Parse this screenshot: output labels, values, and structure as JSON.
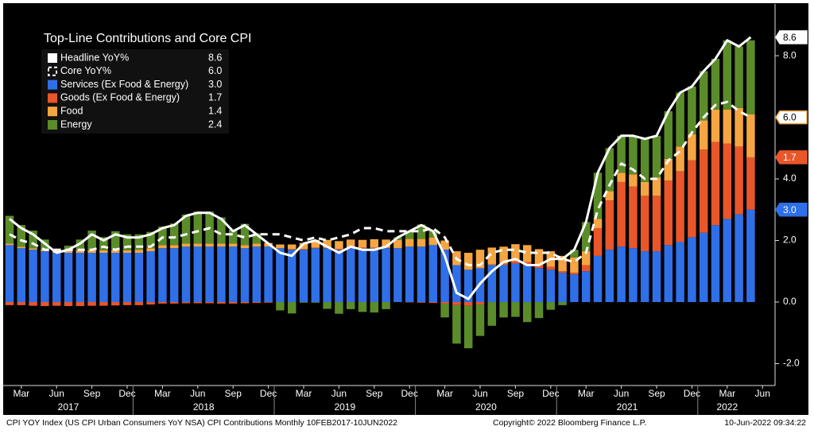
{
  "chart_data": {
    "type": "stacked_bar",
    "title": "Top-Line Contributions and Core CPI",
    "categories": [
      null,
      "Mar",
      null,
      null,
      "Jun",
      null,
      null,
      "Sep",
      null,
      null,
      "Dec",
      null,
      null,
      "Mar",
      null,
      null,
      "Jun",
      null,
      null,
      "Sep",
      null,
      null,
      "Dec",
      null,
      null,
      "Mar",
      null,
      null,
      "Jun",
      null,
      null,
      "Sep",
      null,
      null,
      "Dec",
      null,
      null,
      "Mar",
      null,
      null,
      "Jun",
      null,
      null,
      "Sep",
      null,
      null,
      "Dec",
      null,
      null,
      "Mar",
      null,
      null,
      "Jun",
      null,
      null,
      "Sep",
      null,
      null,
      "Dec",
      null,
      null,
      "Mar",
      null,
      null,
      "Jun"
    ],
    "years": [
      "2017",
      "2018",
      "2019",
      "2020",
      "2021",
      "2022"
    ],
    "ylim": [
      -2.71,
      9.68
    ],
    "yticks": [
      {
        "value": -2,
        "label": "-2.0"
      },
      {
        "value": 0,
        "label": "0.0"
      },
      {
        "value": 2,
        "label": "2.0"
      },
      {
        "value": 4,
        "label": "4.0"
      },
      {
        "value": 6,
        "label": "6.0"
      },
      {
        "value": 8,
        "label": "8.0"
      }
    ],
    "series": [
      {
        "name": "Headline YoY%",
        "kind": "line",
        "color": "#ffffff",
        "legend_value": "8.6",
        "tag": true,
        "values": [
          2.7,
          2.4,
          2.2,
          1.9,
          1.6,
          1.7,
          1.9,
          2.2,
          2.0,
          2.2,
          2.1,
          2.1,
          2.2,
          2.4,
          2.5,
          2.8,
          2.9,
          2.9,
          2.7,
          2.3,
          2.5,
          2.2,
          1.9,
          1.6,
          1.5,
          1.9,
          2.0,
          1.8,
          1.6,
          1.8,
          1.7,
          1.7,
          1.8,
          2.1,
          2.3,
          2.5,
          2.3,
          1.5,
          0.3,
          0.1,
          0.6,
          1.0,
          1.3,
          1.4,
          1.2,
          1.2,
          1.4,
          1.4,
          1.7,
          2.6,
          4.2,
          5.0,
          5.4,
          5.4,
          5.3,
          5.4,
          6.2,
          6.8,
          7.0,
          7.5,
          7.9,
          8.5,
          8.3,
          8.6,
          null
        ]
      },
      {
        "name": "Core YoY%",
        "kind": "line",
        "dashed": true,
        "color": "#ffffff",
        "legend_value": "6.0",
        "tag": true,
        "tag_border": "#f5a542",
        "values": [
          2.2,
          2.0,
          1.9,
          1.7,
          1.7,
          1.7,
          1.7,
          1.7,
          1.8,
          1.7,
          1.8,
          1.8,
          1.8,
          2.1,
          2.1,
          2.2,
          2.3,
          2.4,
          2.2,
          2.2,
          2.1,
          2.2,
          2.2,
          2.2,
          2.1,
          2.0,
          2.1,
          2.0,
          2.1,
          2.2,
          2.4,
          2.4,
          2.3,
          2.3,
          2.3,
          2.3,
          2.4,
          2.1,
          1.4,
          1.2,
          1.2,
          1.6,
          1.7,
          1.7,
          1.6,
          1.6,
          1.6,
          1.4,
          1.3,
          1.6,
          3.0,
          3.8,
          4.5,
          4.3,
          4.0,
          4.0,
          4.6,
          4.9,
          5.5,
          6.0,
          6.4,
          6.5,
          6.2,
          6.0,
          null
        ]
      },
      {
        "name": "Services (Ex Food & Energy)",
        "kind": "bar",
        "color": "#2f6fe8",
        "legend_value": "3.0",
        "tag": true,
        "values": [
          1.85,
          1.75,
          1.7,
          1.65,
          1.6,
          1.6,
          1.6,
          1.6,
          1.6,
          1.6,
          1.6,
          1.6,
          1.65,
          1.75,
          1.75,
          1.8,
          1.8,
          1.8,
          1.8,
          1.8,
          1.75,
          1.8,
          1.8,
          1.75,
          1.7,
          1.7,
          1.75,
          1.75,
          1.7,
          1.75,
          1.75,
          1.75,
          1.75,
          1.75,
          1.8,
          1.8,
          1.85,
          1.7,
          1.2,
          1.05,
          1.1,
          1.2,
          1.2,
          1.25,
          1.2,
          1.1,
          1.05,
          0.95,
          0.9,
          1.0,
          1.5,
          1.7,
          1.8,
          1.75,
          1.65,
          1.65,
          1.85,
          1.95,
          2.1,
          2.25,
          2.5,
          2.7,
          2.85,
          3.0,
          null
        ]
      },
      {
        "name": "Goods (Ex Food & Energy)",
        "kind": "bar",
        "color": "#e8562a",
        "legend_value": "1.7",
        "tag": true,
        "values": [
          -0.1,
          -0.1,
          -0.12,
          -0.13,
          -0.12,
          -0.13,
          -0.13,
          -0.12,
          -0.12,
          -0.11,
          -0.1,
          -0.1,
          -0.08,
          -0.05,
          -0.05,
          -0.04,
          -0.04,
          -0.04,
          -0.05,
          -0.05,
          -0.04,
          -0.03,
          -0.02,
          0.0,
          0.02,
          0.02,
          0.02,
          0.02,
          0.03,
          0.03,
          0.02,
          0.02,
          0.01,
          0.0,
          -0.01,
          -0.02,
          -0.03,
          -0.05,
          -0.1,
          -0.12,
          -0.08,
          0.02,
          0.05,
          0.08,
          0.1,
          0.1,
          0.1,
          0.05,
          0.05,
          0.2,
          0.9,
          1.6,
          2.1,
          2.0,
          1.8,
          1.8,
          2.1,
          2.3,
          2.5,
          2.7,
          2.7,
          2.45,
          2.2,
          1.7,
          null
        ]
      },
      {
        "name": "Food",
        "kind": "bar",
        "color": "#f5a542",
        "legend_value": "1.4",
        "values": [
          0.05,
          0.05,
          0.05,
          0.06,
          0.07,
          0.08,
          0.08,
          0.08,
          0.08,
          0.08,
          0.08,
          0.1,
          0.1,
          0.1,
          0.1,
          0.1,
          0.1,
          0.1,
          0.1,
          0.1,
          0.1,
          0.1,
          0.12,
          0.12,
          0.15,
          0.2,
          0.25,
          0.25,
          0.25,
          0.25,
          0.25,
          0.27,
          0.27,
          0.27,
          0.25,
          0.25,
          0.25,
          0.3,
          0.45,
          0.55,
          0.6,
          0.55,
          0.55,
          0.55,
          0.55,
          0.52,
          0.5,
          0.5,
          0.5,
          0.45,
          0.3,
          0.3,
          0.3,
          0.4,
          0.45,
          0.6,
          0.7,
          0.8,
          0.85,
          0.95,
          1.05,
          1.1,
          1.25,
          1.4,
          null
        ]
      },
      {
        "name": "Energy",
        "kind": "bar",
        "color": "#5b8c2a",
        "legend_value": "2.4",
        "values": [
          0.9,
          0.7,
          0.57,
          0.32,
          0.05,
          0.15,
          0.35,
          0.64,
          0.43,
          0.62,
          0.52,
          0.5,
          0.53,
          0.6,
          0.7,
          0.94,
          1.04,
          1.04,
          0.85,
          0.45,
          0.69,
          0.33,
          0.0,
          -0.27,
          -0.37,
          -0.02,
          -0.02,
          -0.22,
          -0.38,
          -0.23,
          -0.32,
          -0.34,
          -0.23,
          0.08,
          0.26,
          0.47,
          0.23,
          -0.45,
          -1.25,
          -1.38,
          -1.02,
          -0.77,
          -0.5,
          -0.48,
          -0.65,
          -0.52,
          -0.25,
          -0.1,
          0.25,
          0.95,
          1.5,
          1.4,
          1.2,
          1.25,
          1.4,
          1.35,
          1.55,
          1.75,
          1.55,
          1.6,
          1.65,
          2.25,
          2.0,
          2.4,
          null
        ]
      }
    ]
  },
  "footer": {
    "left": "CPI YOY Index (US CPI Urban Consumers YoY NSA) CPI Contributions  Monthly 10FEB2017-10JUN2022",
    "center": "Copyright© 2022 Bloomberg Finance L.P.",
    "right": "10-Jun-2022 09:34:22"
  }
}
